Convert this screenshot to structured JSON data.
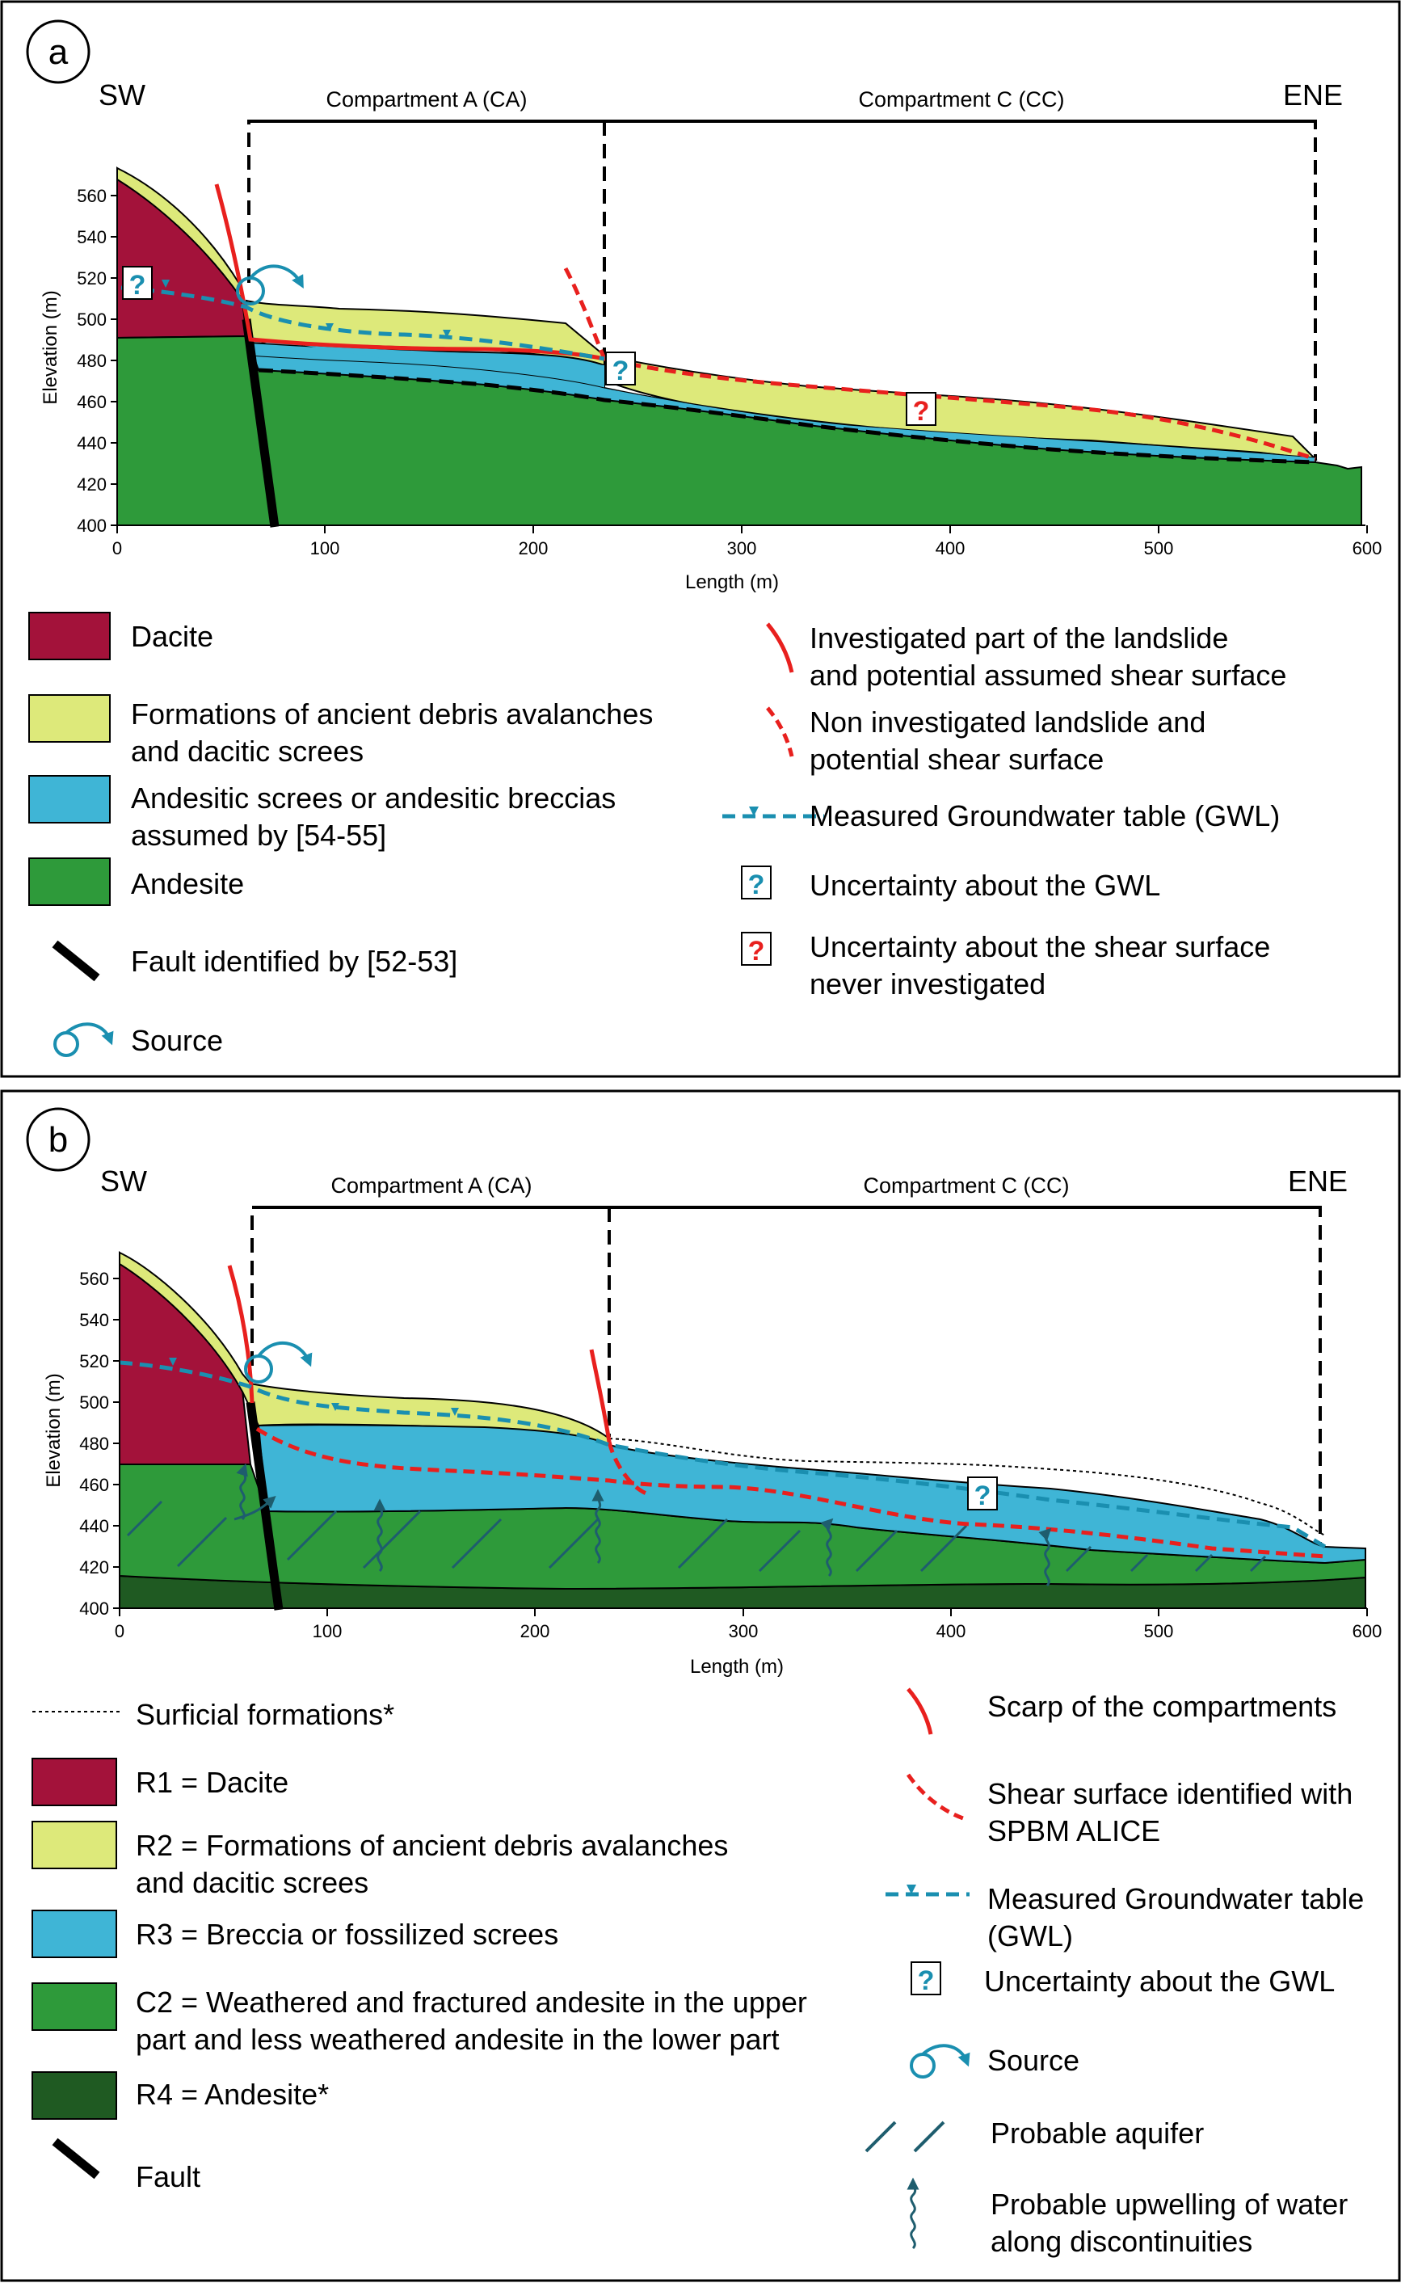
{
  "panel_a": {
    "letter": "a",
    "dir_left": "SW",
    "dir_right": "ENE",
    "compartment_a": "Compartment A (CA)",
    "compartment_c": "Compartment C (CC)",
    "xlabel": "Length (m)",
    "ylabel": "Elevation (m)",
    "xticks": [
      "0",
      "100",
      "200",
      "300",
      "400",
      "500",
      "600"
    ],
    "yticks": [
      "400",
      "420",
      "440",
      "460",
      "480",
      "500",
      "520",
      "540",
      "560"
    ],
    "legend_left": [
      {
        "label": "Dacite"
      },
      {
        "label": "Formations of ancient debris avalanches",
        "label2": "and dacitic screes"
      },
      {
        "label": "Andesitic screes or andesitic breccias",
        "label2": "assumed by [54-55]"
      },
      {
        "label": "Andesite"
      },
      {
        "label": "Fault identified by [52-53]"
      },
      {
        "label": "Source"
      }
    ],
    "legend_right": [
      {
        "label": "Investigated part of the landslide",
        "label2": "and potential assumed shear surface"
      },
      {
        "label": "Non investigated landslide and",
        "label2": "potential shear surface"
      },
      {
        "label": "Measured Groundwater table (GWL)"
      },
      {
        "label": "Uncertainty about the GWL"
      },
      {
        "label": "Uncertainty about the shear surface",
        "label2": "never investigated"
      }
    ],
    "qmark": "?"
  },
  "panel_b": {
    "letter": "b",
    "dir_left": "SW",
    "dir_right": "ENE",
    "compartment_a": "Compartment A (CA)",
    "compartment_c": "Compartment C (CC)",
    "xlabel": "Length (m)",
    "ylabel": "Elevation (m)",
    "xticks": [
      "0",
      "100",
      "200",
      "300",
      "400",
      "500",
      "600"
    ],
    "yticks": [
      "400",
      "420",
      "440",
      "460",
      "480",
      "500",
      "520",
      "540",
      "560"
    ],
    "legend_left": [
      {
        "label": "Surficial formations*"
      },
      {
        "label": "R1 = Dacite"
      },
      {
        "label": "R2 = Formations of ancient debris avalanches",
        "label2": "and dacitic screes"
      },
      {
        "label": "R3 = Breccia or fossilized screes"
      },
      {
        "label": "C2 = Weathered and fractured andesite in the upper",
        "label2": "part and less weathered andesite in the lower part"
      },
      {
        "label": "R4 = Andesite*"
      },
      {
        "label": "Fault"
      }
    ],
    "legend_right": [
      {
        "label": "Scarp of the compartments"
      },
      {
        "label": "Shear surface identified with",
        "label2": "SPBM ALICE"
      },
      {
        "label": "Measured Groundwater table",
        "label2": "(GWL)"
      },
      {
        "label": "Uncertainty about the GWL"
      },
      {
        "label": "Source"
      },
      {
        "label": "Probable aquifer"
      },
      {
        "label": "Probable upwelling of water",
        "label2": "along discontinuities"
      }
    ],
    "qmark": "?"
  },
  "colors": {
    "dacite": "#a3123a",
    "debris": "#dde97a",
    "breccia": "#3fb5d6",
    "andesite": "#2e9a3a",
    "andesite_dark": "#1f5a22",
    "shear": "#e8201e",
    "gwl": "#1a8fb0",
    "aquifer": "#1e5d6e"
  }
}
